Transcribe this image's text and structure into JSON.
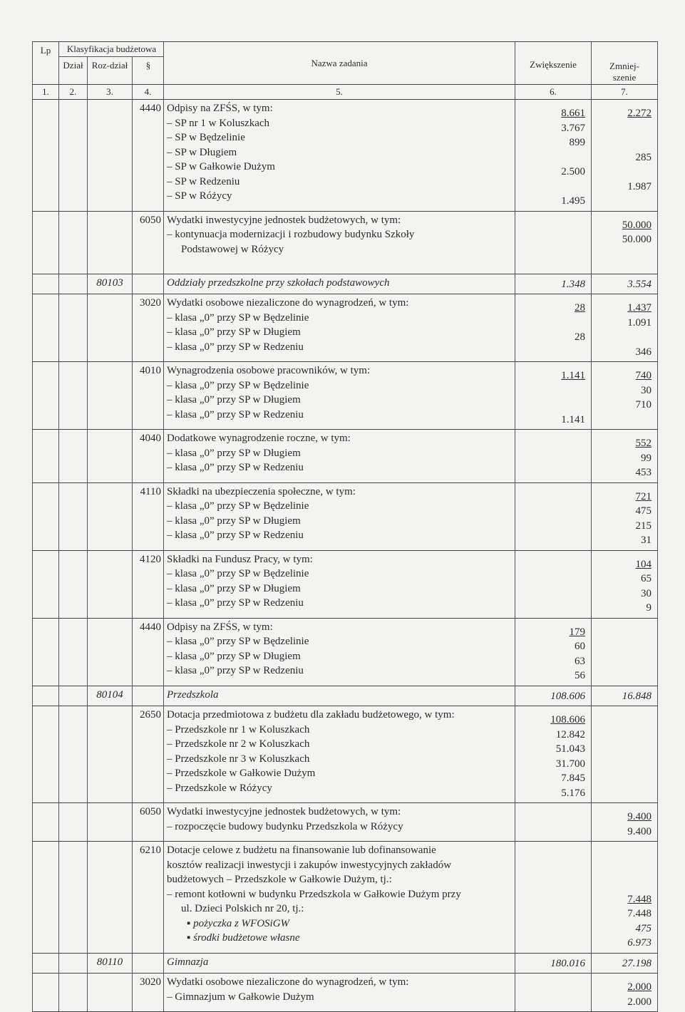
{
  "header": {
    "lp": "Lp",
    "klasyfikacja": "Klasyfikacja budżetowa",
    "dzial": "Dział",
    "rozdzial": "Roz-dział",
    "paragraf": "§",
    "nazwa": "Nazwa zadania",
    "zwiekszenie": "Zwiększenie",
    "zmniejszenie": "Zmniej-szenie"
  },
  "column_numbers": [
    "1.",
    "2.",
    "3.",
    "4.",
    "5.",
    "6.",
    "7."
  ],
  "blocks": [
    {
      "par": "4440",
      "lines": [
        {
          "t": "Odpisy na ZFŚS, w tym:"
        },
        {
          "t": "– SP nr 1 w Koluszkach"
        },
        {
          "t": "– SP w Będzelinie"
        },
        {
          "t": "– SP w Długiem"
        },
        {
          "t": "– SP w Gałkowie Dużym"
        },
        {
          "t": "– SP w Redzeniu"
        },
        {
          "t": "– SP w Różycy"
        }
      ],
      "inc": [
        {
          "v": "8.661",
          "u": true
        },
        {
          "v": "3.767"
        },
        {
          "v": "899"
        },
        {
          "v": ""
        },
        {
          "v": "2.500"
        },
        {
          "v": ""
        },
        {
          "v": "1.495"
        }
      ],
      "dec": [
        {
          "v": "2.272",
          "u": true
        },
        {
          "v": ""
        },
        {
          "v": ""
        },
        {
          "v": "285"
        },
        {
          "v": ""
        },
        {
          "v": "1.987"
        }
      ]
    },
    {
      "par": "6050",
      "lines": [
        {
          "t": "Wydatki inwestycyjne jednostek budżetowych, w tym:"
        },
        {
          "t": "– kontynuacja modernizacji i rozbudowy budynku Szkoły"
        },
        {
          "t": "Podstawowej w Różycy",
          "ind": true
        },
        {
          "t": ""
        }
      ],
      "inc": [],
      "dec": [
        {
          "v": "50.000",
          "u": true
        },
        {
          "v": "50.000"
        }
      ]
    },
    {
      "roz": "80103",
      "lines": [
        {
          "t": "Oddziały przedszkolne przy szkołach podstawowych"
        }
      ],
      "inc": [
        {
          "v": "1.348"
        }
      ],
      "dec": [
        {
          "v": "3.554"
        }
      ]
    },
    {
      "par": "3020",
      "lines": [
        {
          "t": "Wydatki osobowe niezaliczone do wynagrodzeń, w tym:"
        },
        {
          "t": "– klasa „0” przy SP w Będzelinie"
        },
        {
          "t": "– klasa „0” przy SP w Długiem"
        },
        {
          "t": "– klasa „0” przy SP w Redzeniu"
        }
      ],
      "inc": [
        {
          "v": "28",
          "u": true
        },
        {
          "v": ""
        },
        {
          "v": "28"
        }
      ],
      "dec": [
        {
          "v": "1.437",
          "u": true
        },
        {
          "v": "1.091"
        },
        {
          "v": ""
        },
        {
          "v": "346"
        }
      ]
    },
    {
      "par": "4010",
      "lines": [
        {
          "t": "Wynagrodzenia osobowe pracowników, w tym:"
        },
        {
          "t": "– klasa „0” przy SP w Będzelinie"
        },
        {
          "t": "– klasa „0” przy SP w Długiem"
        },
        {
          "t": "– klasa „0” przy SP w Redzeniu"
        }
      ],
      "inc": [
        {
          "v": "1.141",
          "u": true
        },
        {
          "v": ""
        },
        {
          "v": ""
        },
        {
          "v": "1.141"
        }
      ],
      "dec": [
        {
          "v": "740",
          "u": true
        },
        {
          "v": "30"
        },
        {
          "v": "710"
        }
      ]
    },
    {
      "par": "4040",
      "lines": [
        {
          "t": "Dodatkowe wynagrodzenie roczne, w tym:"
        },
        {
          "t": "– klasa „0” przy SP w Długiem"
        },
        {
          "t": "– klasa „0” przy SP w Redzeniu"
        }
      ],
      "inc": [],
      "dec": [
        {
          "v": "552",
          "u": true
        },
        {
          "v": "99"
        },
        {
          "v": "453"
        }
      ]
    },
    {
      "par": "4110",
      "lines": [
        {
          "t": "Składki na ubezpieczenia społeczne, w tym:"
        },
        {
          "t": "– klasa „0” przy SP w Będzelinie"
        },
        {
          "t": "– klasa „0” przy SP w Długiem"
        },
        {
          "t": "– klasa „0” przy SP w Redzeniu"
        }
      ],
      "inc": [],
      "dec": [
        {
          "v": "721",
          "u": true
        },
        {
          "v": "475"
        },
        {
          "v": "215"
        },
        {
          "v": "31"
        }
      ]
    },
    {
      "par": "4120",
      "lines": [
        {
          "t": "Składki na Fundusz Pracy, w tym:"
        },
        {
          "t": "– klasa „0” przy SP w Będzelinie"
        },
        {
          "t": "– klasa „0” przy SP w Długiem"
        },
        {
          "t": "– klasa „0” przy SP w Redzeniu"
        }
      ],
      "inc": [],
      "dec": [
        {
          "v": "104",
          "u": true
        },
        {
          "v": "65"
        },
        {
          "v": "30"
        },
        {
          "v": "9"
        }
      ]
    },
    {
      "par": "4440",
      "lines": [
        {
          "t": "Odpisy na ZFŚS, w tym:"
        },
        {
          "t": "– klasa „0” przy SP w Będzelinie"
        },
        {
          "t": "– klasa „0” przy SP w Długiem"
        },
        {
          "t": "– klasa „0” przy SP w Redzeniu"
        }
      ],
      "inc": [
        {
          "v": "179",
          "u": true
        },
        {
          "v": "60"
        },
        {
          "v": "63"
        },
        {
          "v": "56"
        }
      ],
      "dec": []
    },
    {
      "roz": "80104",
      "lines": [
        {
          "t": "Przedszkola"
        }
      ],
      "inc": [
        {
          "v": "108.606"
        }
      ],
      "dec": [
        {
          "v": "16.848"
        }
      ]
    },
    {
      "par": "2650",
      "lines": [
        {
          "t": "Dotacja przedmiotowa z budżetu dla zakładu budżetowego, w tym:"
        },
        {
          "t": "– Przedszkole nr 1 w Koluszkach"
        },
        {
          "t": "– Przedszkole nr 2 w Koluszkach"
        },
        {
          "t": "– Przedszkole nr 3 w Koluszkach"
        },
        {
          "t": "– Przedszkole w Gałkowie Dużym"
        },
        {
          "t": "– Przedszkole w Różycy"
        }
      ],
      "inc": [
        {
          "v": "108.606",
          "u": true
        },
        {
          "v": "12.842"
        },
        {
          "v": "51.043"
        },
        {
          "v": "31.700"
        },
        {
          "v": "7.845"
        },
        {
          "v": "5.176"
        }
      ],
      "dec": []
    },
    {
      "par": "6050",
      "lines": [
        {
          "t": "Wydatki inwestycyjne jednostek budżetowych, w tym:"
        },
        {
          "t": "– rozpoczęcie budowy budynku Przedszkola w Różycy"
        }
      ],
      "inc": [],
      "dec": [
        {
          "v": "9.400",
          "u": true
        },
        {
          "v": "9.400"
        }
      ]
    },
    {
      "par": "6210",
      "lines": [
        {
          "t": "Dotacje celowe z budżetu na finansowanie lub dofinansowanie"
        },
        {
          "t": "kosztów realizacji inwestycji i zakupów inwestycyjnych zakładów"
        },
        {
          "t": "budżetowych  – Przedszkole w Gałkowie Dużym, tj.:"
        },
        {
          "t": "– remont kotłowni w budynku Przedszkola w Gałkowie Dużym przy"
        },
        {
          "t": "ul. Dzieci Polskich nr 20, tj.:",
          "ind": true
        },
        {
          "t": "▪ pożyczka z WFOSiGW",
          "bul": true
        },
        {
          "t": "▪ środki budżetowe własne",
          "bul": true
        }
      ],
      "inc": [],
      "dec": [
        {
          "v": ""
        },
        {
          "v": ""
        },
        {
          "v": ""
        },
        {
          "v": "7.448",
          "u": true
        },
        {
          "v": "7.448"
        },
        {
          "v": "475",
          "i": true
        },
        {
          "v": "6.973",
          "i": true
        }
      ]
    },
    {
      "roz": "80110",
      "lines": [
        {
          "t": "Gimnazja"
        }
      ],
      "inc": [
        {
          "v": "180.016"
        }
      ],
      "dec": [
        {
          "v": "27.198"
        }
      ]
    },
    {
      "par": "3020",
      "lines": [
        {
          "t": "Wydatki osobowe niezaliczone do wynagrodzeń, w tym:"
        },
        {
          "t": "– Gimnazjum w Gałkowie Dużym"
        }
      ],
      "inc": [],
      "dec": [
        {
          "v": "2.000",
          "u": true
        },
        {
          "v": "2.000"
        }
      ]
    }
  ]
}
